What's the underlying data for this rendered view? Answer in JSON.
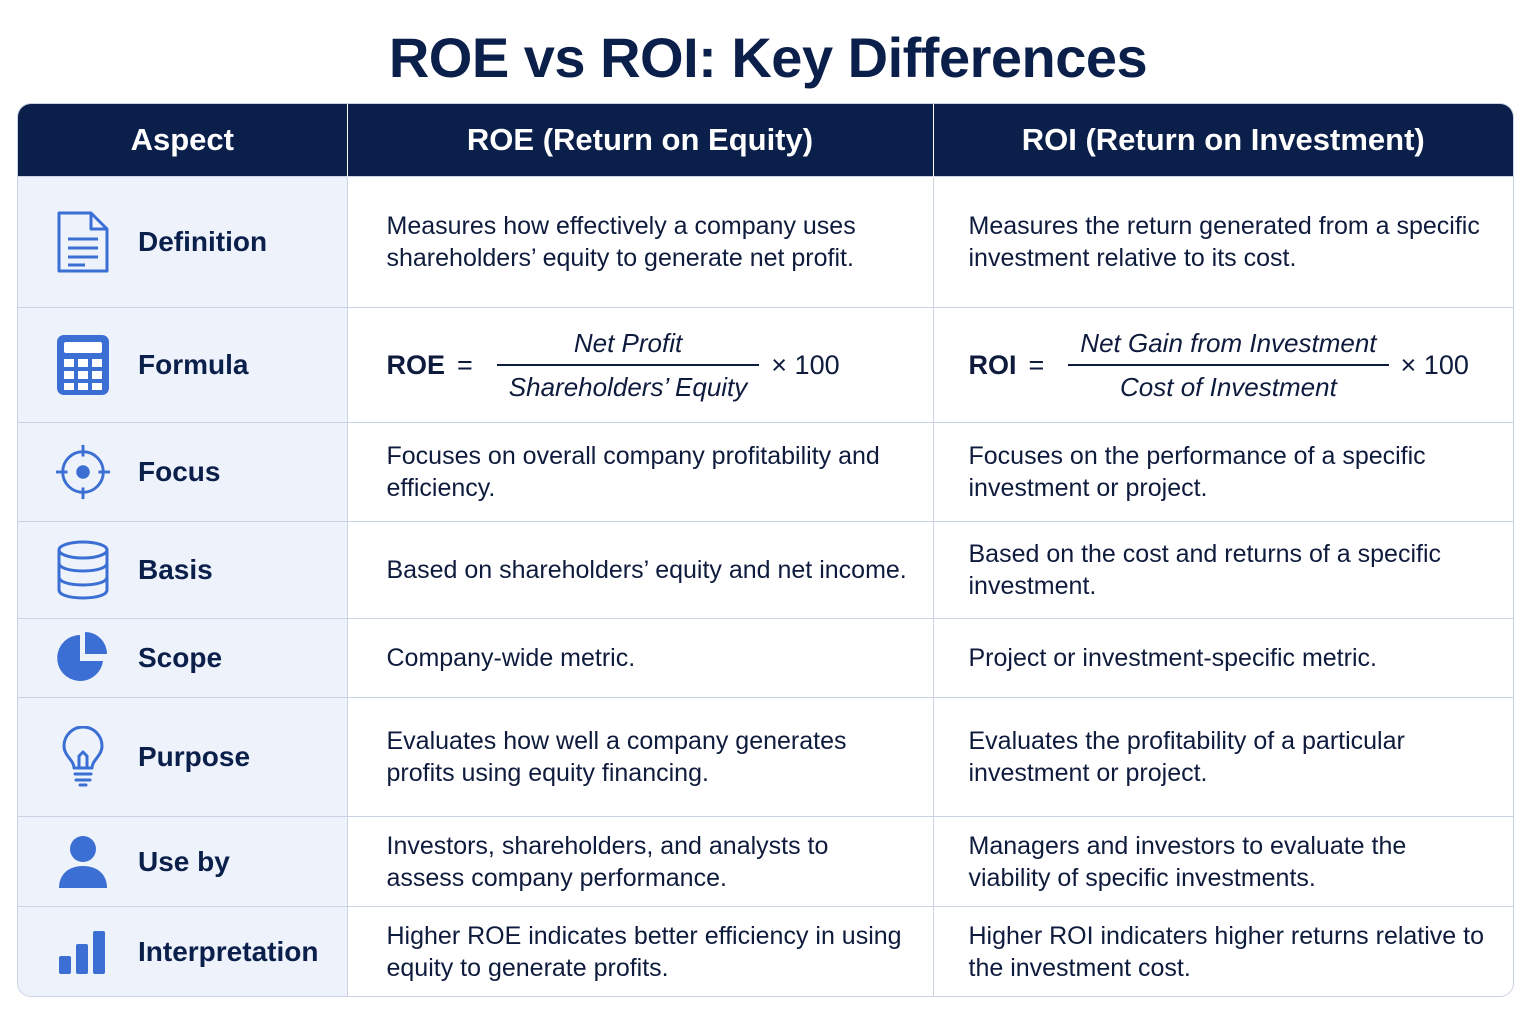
{
  "title": "ROE vs ROI: Key Differences",
  "colors": {
    "header_bg": "#0b1f4b",
    "icon": "#3b6fd4",
    "aspect_bg": "#edf2fb",
    "border": "#c9d3e3"
  },
  "table": {
    "headers": [
      "Aspect",
      "ROE (Return on Equity)",
      "ROI (Return on Investment)"
    ],
    "rows": [
      {
        "icon": "document-icon",
        "aspect": "Definition",
        "roe": "Measures how effectively a company uses shareholders’ equity to generate net profit.",
        "roi": "Measures the return generated from a specific investment relative to its cost."
      },
      {
        "icon": "calculator-icon",
        "aspect": "Formula",
        "roe": {
          "lhs": "ROE",
          "eq": "=",
          "numerator": "Net Profit",
          "denominator": "Shareholders’ Equity",
          "mult": "× 100"
        },
        "roi": {
          "lhs": "ROI",
          "eq": "=",
          "numerator": "Net Gain from Investment",
          "denominator": "Cost of Investment",
          "mult": "× 100"
        }
      },
      {
        "icon": "target-icon",
        "aspect": "Focus",
        "roe": "Focuses on overall company profitability and efficiency.",
        "roi": "Focuses on the performance of a specific investment or project."
      },
      {
        "icon": "database-icon",
        "aspect": "Basis",
        "roe": "Based on shareholders’ equity and net income.",
        "roi": "Based on the cost and returns of a specific investment."
      },
      {
        "icon": "pie-chart-icon",
        "aspect": "Scope",
        "roe": "Company-wide metric.",
        "roi": "Project or investment-specific metric."
      },
      {
        "icon": "lightbulb-icon",
        "aspect": "Purpose",
        "roe": "Evaluates how well a company generates profits using equity financing.",
        "roi": "Evaluates the profitability of a particular investment or project."
      },
      {
        "icon": "user-icon",
        "aspect": "Use by",
        "roe": "Investors, shareholders, and analysts to assess company performance.",
        "roi": "Managers and investors to evaluate the viability of specific investments."
      },
      {
        "icon": "bar-chart-icon",
        "aspect": "Interpretation",
        "roe": "Higher ROE indicates better efficiency in using equity to generate profits.",
        "roi": "Higher ROI indicaters higher returns relative to the investment cost."
      }
    ]
  }
}
